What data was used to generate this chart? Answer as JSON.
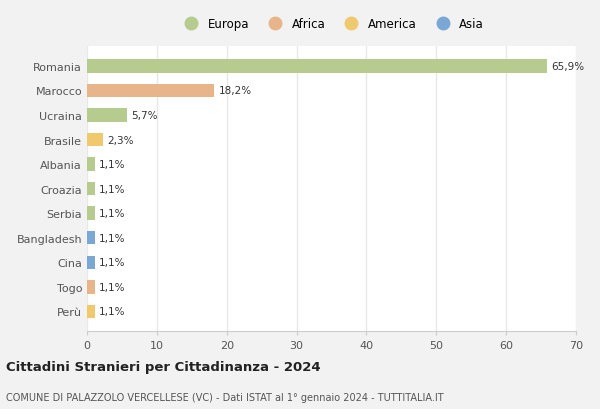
{
  "countries": [
    "Romania",
    "Marocco",
    "Ucraina",
    "Brasile",
    "Albania",
    "Croazia",
    "Serbia",
    "Bangladesh",
    "Cina",
    "Togo",
    "Perù"
  ],
  "values": [
    65.9,
    18.2,
    5.7,
    2.3,
    1.1,
    1.1,
    1.1,
    1.1,
    1.1,
    1.1,
    1.1
  ],
  "labels": [
    "65,9%",
    "18,2%",
    "5,7%",
    "2,3%",
    "1,1%",
    "1,1%",
    "1,1%",
    "1,1%",
    "1,1%",
    "1,1%",
    "1,1%"
  ],
  "continents": [
    "Europa",
    "Africa",
    "Europa",
    "America",
    "Europa",
    "Europa",
    "Europa",
    "Asia",
    "Asia",
    "Africa",
    "America"
  ],
  "colors": {
    "Europa": "#b5cc8e",
    "Africa": "#e8b48a",
    "America": "#f0c96e",
    "Asia": "#7ba7d4"
  },
  "xlim": [
    0,
    70
  ],
  "xticks": [
    0,
    10,
    20,
    30,
    40,
    50,
    60,
    70
  ],
  "title": "Cittadini Stranieri per Cittadinanza - 2024",
  "subtitle": "COMUNE DI PALAZZOLO VERCELLESE (VC) - Dati ISTAT al 1° gennaio 2024 - TUTTITALIA.IT",
  "fig_background": "#f2f2f2",
  "plot_background": "#ffffff",
  "grid_color": "#e8e8e8",
  "bar_height": 0.55,
  "legend_order": [
    "Europa",
    "Africa",
    "America",
    "Asia"
  ]
}
